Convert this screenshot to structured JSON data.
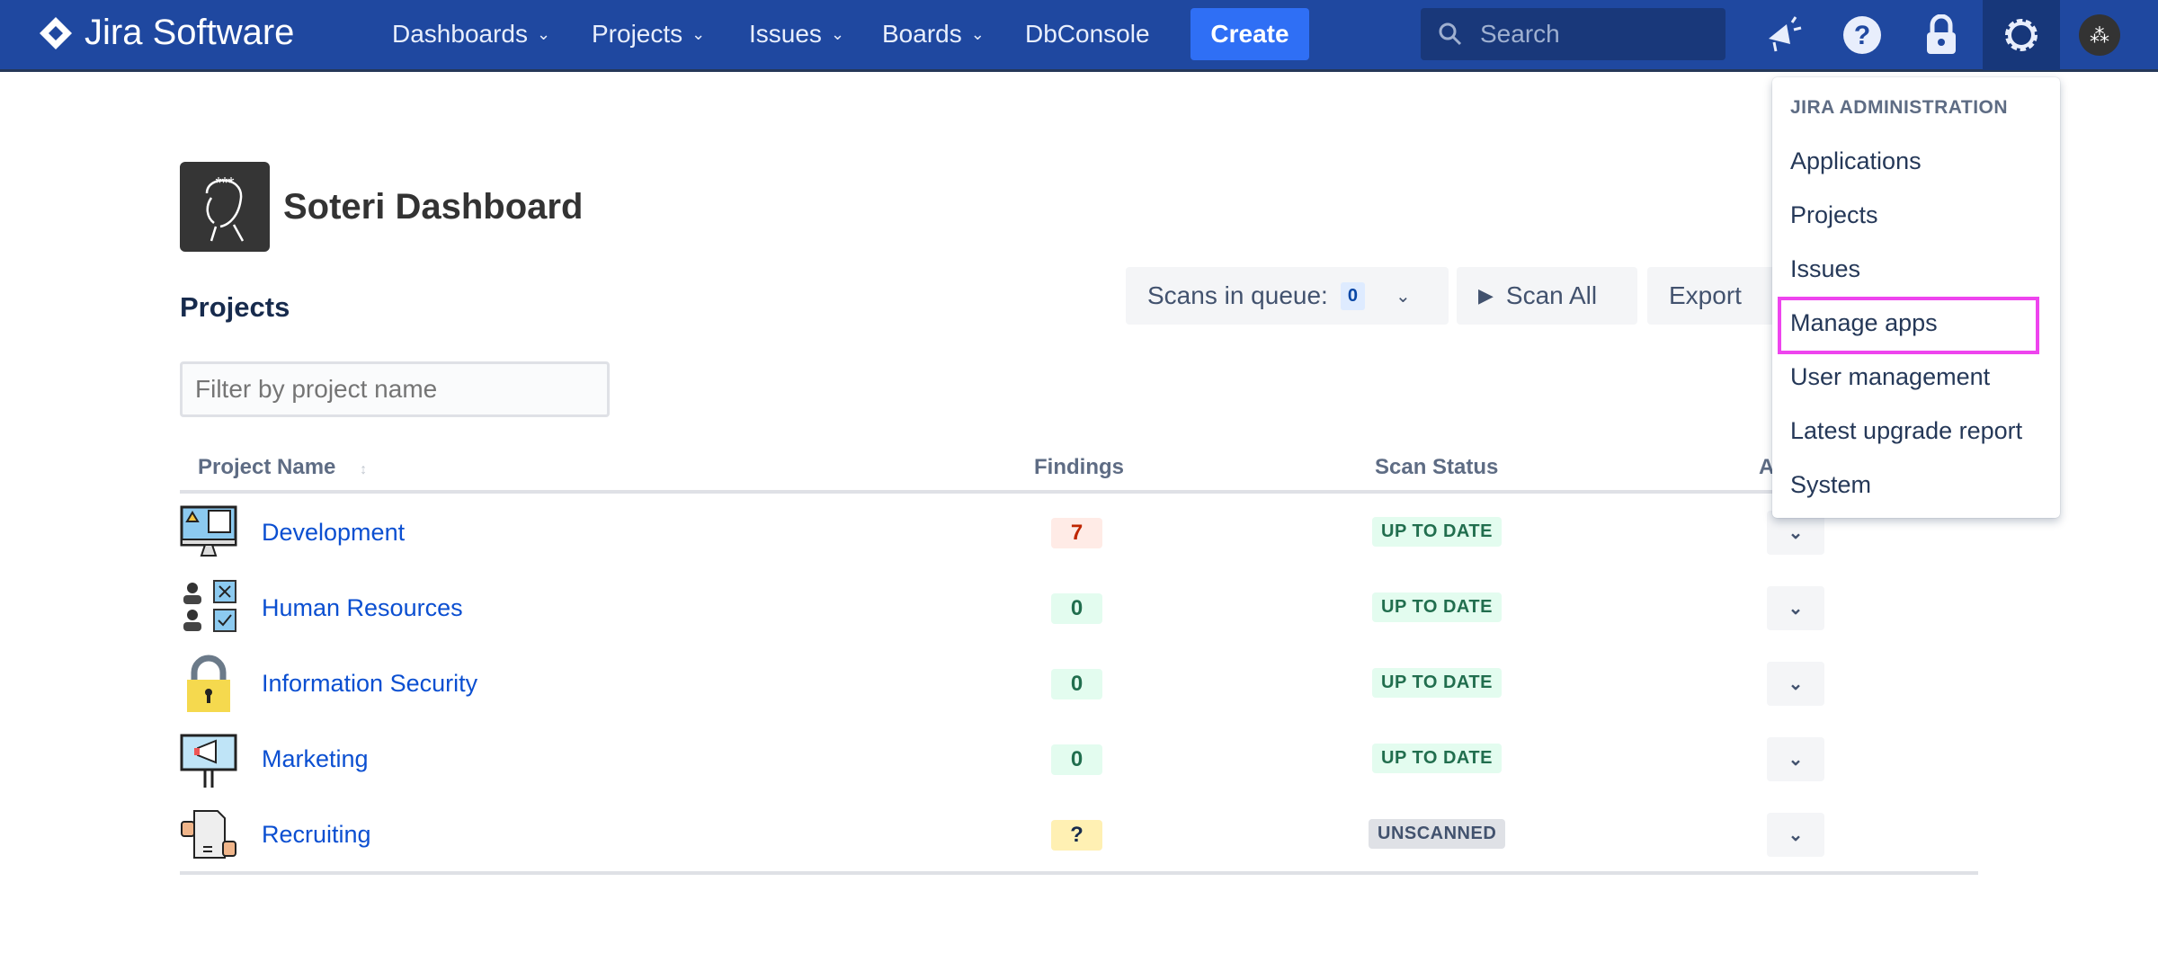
{
  "nav": {
    "product": "Jira Software",
    "items": [
      {
        "label": "Dashboards",
        "dropdown": true
      },
      {
        "label": "Projects",
        "dropdown": true
      },
      {
        "label": "Issues",
        "dropdown": true
      },
      {
        "label": "Boards",
        "dropdown": true
      },
      {
        "label": "DbConsole",
        "dropdown": false
      }
    ],
    "create": "Create",
    "search_placeholder": "Search",
    "icons": [
      "megaphone-icon",
      "help-icon",
      "lock-icon",
      "gear-icon",
      "avatar"
    ]
  },
  "admin_menu": {
    "header": "JIRA ADMINISTRATION",
    "items": [
      "Applications",
      "Projects",
      "Issues",
      "Manage apps",
      "User management",
      "Latest upgrade report",
      "System"
    ],
    "highlighted": "Manage apps"
  },
  "page": {
    "title": "Soteri Dashboard",
    "section": "Projects",
    "filter_placeholder": "Filter by project name",
    "scans_label": "Scans in queue:",
    "scans_count": "0",
    "scan_all": "Scan All",
    "export": "Export"
  },
  "table": {
    "headers": {
      "name": "Project Name",
      "findings": "Findings",
      "status": "Scan Status",
      "actions": "A"
    },
    "rows": [
      {
        "name": "Development",
        "findings": "7",
        "status": "UP TO DATE",
        "icon": "development-icon"
      },
      {
        "name": "Human Resources",
        "findings": "0",
        "status": "UP TO DATE",
        "icon": "hr-icon"
      },
      {
        "name": "Information Security",
        "findings": "0",
        "status": "UP TO DATE",
        "icon": "padlock-icon"
      },
      {
        "name": "Marketing",
        "findings": "0",
        "status": "UP TO DATE",
        "icon": "billboard-icon"
      },
      {
        "name": "Recruiting",
        "findings": "?",
        "status": "UNSCANNED",
        "icon": "handshake-document-icon"
      }
    ]
  },
  "colors": {
    "nav": "#1f48a0",
    "create": "#2f6ff5",
    "link": "#0b4fd1",
    "highlight": "#ee44ee",
    "danger_bg": "#ffebe6",
    "danger_fg": "#bf2600",
    "ok_bg": "#e3fcef",
    "ok_fg": "#216e4e",
    "unknown_bg": "#fff0b3",
    "unscanned_bg": "#dfe1e6"
  }
}
